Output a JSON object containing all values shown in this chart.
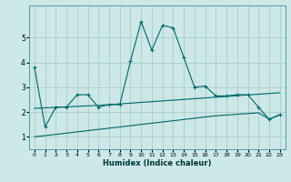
{
  "title": "",
  "xlabel": "Humidex (Indice chaleur)",
  "ylabel": "",
  "background_color": "#cce8e8",
  "grid_color": "#aacccc",
  "line_color": "#006666",
  "xlim": [
    -0.5,
    23.5
  ],
  "ylim": [
    0.5,
    6.3
  ],
  "x_ticks": [
    0,
    1,
    2,
    3,
    4,
    5,
    6,
    7,
    8,
    9,
    10,
    11,
    12,
    13,
    14,
    15,
    16,
    17,
    18,
    19,
    20,
    21,
    22,
    23
  ],
  "y_ticks": [
    1,
    2,
    3,
    4,
    5
  ],
  "series1_x": [
    0,
    1,
    2,
    3,
    4,
    5,
    6,
    7,
    8,
    9,
    10,
    11,
    12,
    13,
    14,
    15,
    16,
    17,
    18,
    19,
    20,
    21,
    22,
    23
  ],
  "series1_y": [
    3.8,
    1.4,
    2.2,
    2.2,
    2.7,
    2.7,
    2.2,
    2.3,
    2.3,
    4.05,
    5.65,
    4.5,
    5.5,
    5.4,
    4.2,
    3.0,
    3.05,
    2.65,
    2.65,
    2.7,
    2.7,
    2.2,
    1.7,
    1.9
  ],
  "series2_x": [
    0,
    1,
    2,
    3,
    4,
    5,
    6,
    7,
    8,
    9,
    10,
    11,
    12,
    13,
    14,
    15,
    16,
    17,
    18,
    19,
    20,
    21,
    22,
    23
  ],
  "series2_y": [
    2.15,
    2.17,
    2.19,
    2.21,
    2.23,
    2.25,
    2.27,
    2.3,
    2.33,
    2.36,
    2.39,
    2.42,
    2.45,
    2.48,
    2.51,
    2.54,
    2.57,
    2.6,
    2.63,
    2.66,
    2.69,
    2.72,
    2.75,
    2.78
  ],
  "series3_x": [
    0,
    1,
    2,
    3,
    4,
    5,
    6,
    7,
    8,
    9,
    10,
    11,
    12,
    13,
    14,
    15,
    16,
    17,
    18,
    19,
    20,
    21,
    22,
    23
  ],
  "series3_y": [
    1.0,
    1.05,
    1.1,
    1.15,
    1.2,
    1.25,
    1.3,
    1.35,
    1.4,
    1.45,
    1.5,
    1.55,
    1.6,
    1.65,
    1.7,
    1.75,
    1.8,
    1.85,
    1.88,
    1.91,
    1.94,
    1.97,
    1.72,
    1.88
  ]
}
